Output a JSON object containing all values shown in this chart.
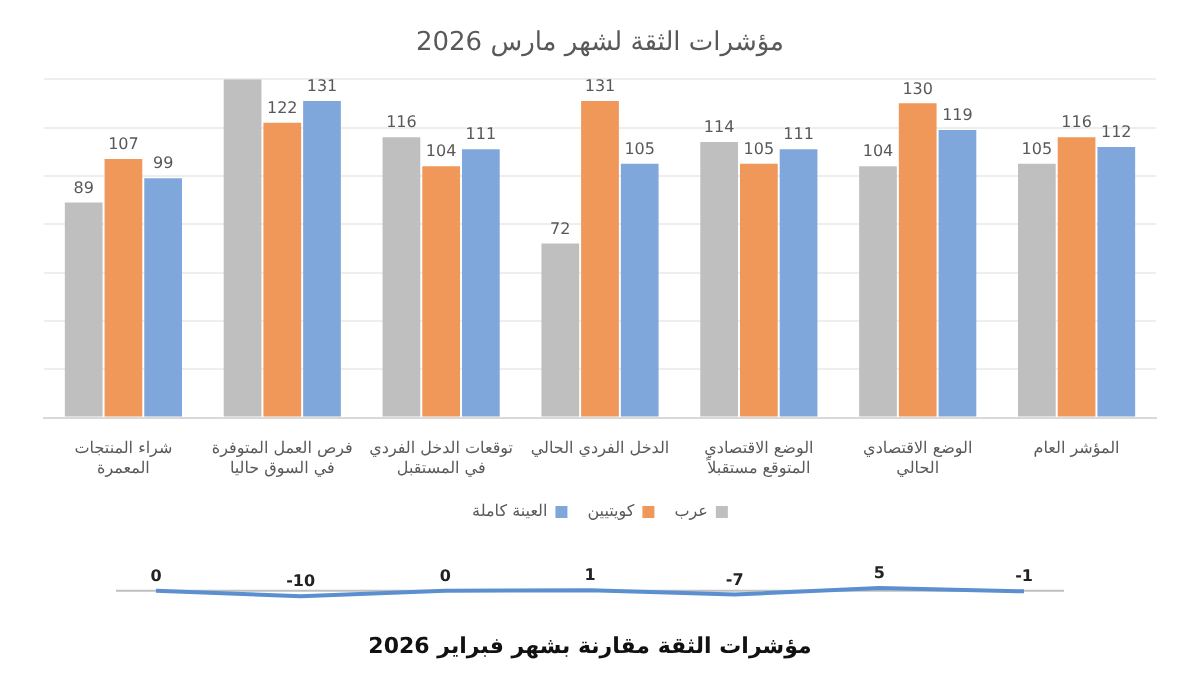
{
  "chart_data": [
    {
      "type": "bar",
      "title": "مؤشرات الثقة لشهر مارس 2026",
      "categories": [
        "شراء المنتجات المعمرة",
        "فرص العمل المتوفرة في السوق حاليا",
        "توقعات الدخل الفردي في المستقبل",
        "الدخل الفردي الحالي",
        "الوضع الاقتصادي المتوقع مستقبلاً",
        "الوضع الاقتصادي الحالي",
        "المؤشر العام"
      ],
      "series": [
        {
          "name": "عرب",
          "color": "#bfbfbf",
          "values": [
            89,
            140,
            116,
            72,
            114,
            104,
            105
          ],
          "value_labels": [
            "89",
            null,
            "116",
            "72",
            "114",
            "104",
            "105"
          ]
        },
        {
          "name": "كويتيين",
          "color": "#f0975a",
          "values": [
            107,
            122,
            104,
            131,
            105,
            130,
            116
          ],
          "value_labels": [
            "107",
            "122",
            "104",
            "131",
            "105",
            "130",
            "116"
          ]
        },
        {
          "name": "العينة كاملة",
          "color": "#7fa7dc",
          "values": [
            99,
            131,
            111,
            105,
            111,
            119,
            112
          ],
          "value_labels": [
            "99",
            "131",
            "111",
            "105",
            "111",
            "119",
            "112"
          ]
        }
      ],
      "ylim": [
        0,
        140
      ],
      "yticks": [
        {
          "value": 0,
          "label": null
        },
        {
          "value": 20,
          "label": null
        },
        {
          "value": 40,
          "label": null
        },
        {
          "value": 60,
          "label": null
        },
        {
          "value": 80,
          "label": null
        },
        {
          "value": 100,
          "label": null
        },
        {
          "value": 120,
          "label": null
        },
        {
          "value": 140,
          "label": null
        }
      ],
      "tick_labels": "x",
      "grid": "y",
      "legend": "bottom"
    },
    {
      "type": "line",
      "title": "مؤشرات الثقة مقارنة بشهر فبراير 2026",
      "categories": [
        null,
        null,
        null,
        null,
        null,
        null,
        null
      ],
      "series": [
        {
          "color": "#5b8fd0",
          "values": [
            0,
            -10,
            0,
            1,
            -7,
            5,
            -1
          ]
        }
      ],
      "data_labels": true,
      "tick_labels": false,
      "grid": false,
      "legend": false,
      "marker": "none",
      "line_style": "solid",
      "ref_lines": [
        {
          "axis": "y",
          "value": 0,
          "color": "#bfbfbf"
        }
      ]
    }
  ]
}
